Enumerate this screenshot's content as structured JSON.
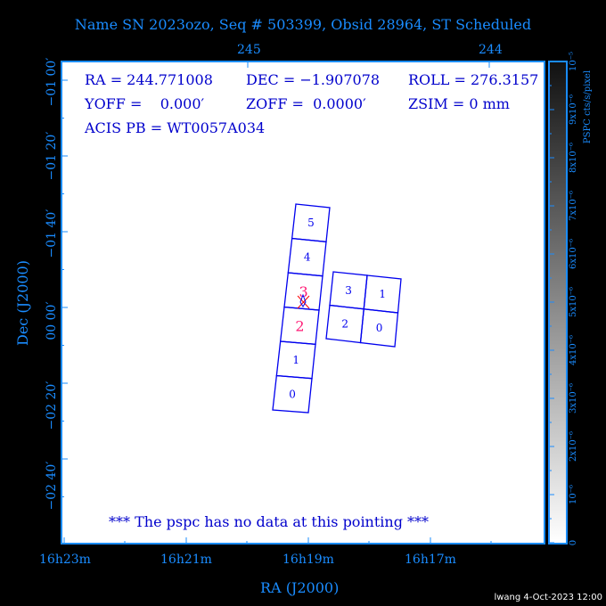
{
  "title": "Name SN 2023ozo, Seq # 503399, Obsid 28964, ST Scheduled",
  "info": {
    "ra": "RA = 244.771008",
    "dec": "DEC = −1.907078",
    "roll": "ROLL = 276.3157",
    "yoff": "YOFF =    0.000′",
    "zoff": "ZOFF =  0.0000′",
    "zsim": "ZSIM = 0 mm",
    "acis_pb": "ACIS PB = WT0057A034"
  },
  "message": "*** The pspc has no data at this pointing ***",
  "footer": "lwang  4-Oct-2023 12:00",
  "chart_data": {
    "type": "sky-field",
    "xlabel": "RA (J2000)",
    "ylabel": "Dec (J2000)",
    "x_tick_labels_bottom": [
      "16h23m",
      "16h21m",
      "16h19m",
      "16h17m"
    ],
    "x_tick_labels_top": [
      "245",
      "244"
    ],
    "y_tick_labels": [
      "−01 00′",
      "−01 20′",
      "−01 40′",
      "00 00′",
      "−02 20′",
      "−02 40′"
    ],
    "colorbar": {
      "label": "PSPC cts/s/pixel",
      "tick_labels": [
        "0",
        "10⁻⁶",
        "2x10⁻⁶",
        "3x10⁻⁶",
        "4x10⁻⁶",
        "5x10⁻⁶",
        "6x10⁻⁶",
        "7x10⁻⁶",
        "8x10⁻⁶",
        "9x10⁻⁶",
        "10⁻⁵"
      ],
      "range": [
        0,
        1e-05
      ]
    },
    "s_array_chips": [
      "0",
      "1",
      "2",
      "3",
      "4",
      "5"
    ],
    "i_array_chips": [
      "3",
      "1",
      "2",
      "0"
    ],
    "aimpoint_chip": "S3/S2",
    "colors": {
      "chip_outline": "#0000ee",
      "highlight": "#ff1a75",
      "axis": "#1a8cff"
    }
  }
}
